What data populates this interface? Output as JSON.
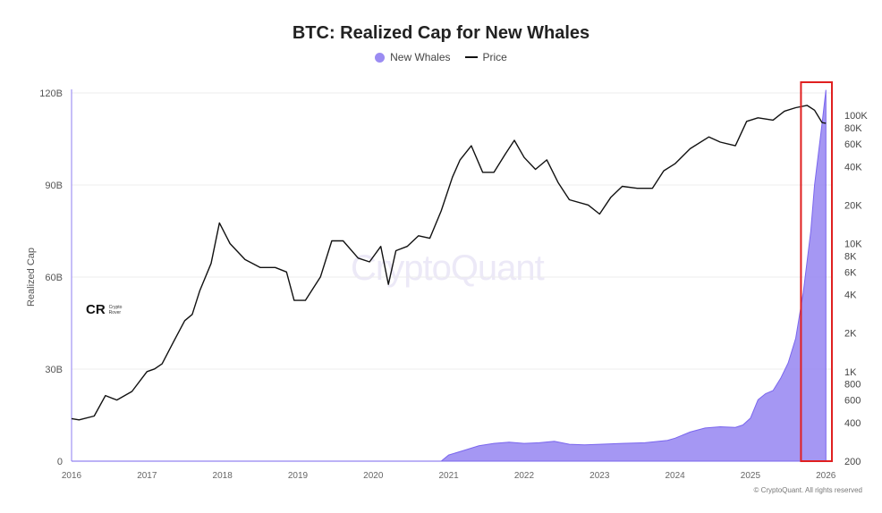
{
  "colors": {
    "area": "#9b8cf2",
    "area_stroke": "#7a66ee",
    "price": "#111111",
    "highlight": "#e02020",
    "grid": "#ececec",
    "left_axis": "#b4a8f5"
  },
  "watermark": "CryptoQuant",
  "brand": {
    "logo": "CR",
    "text": "Crypto\nRover"
  },
  "copyright": "© CryptoQuant. All rights reserved",
  "chart_data": {
    "type": "area",
    "title": "BTC: Realized Cap for New Whales",
    "legend": [
      "New Whales",
      "Price"
    ],
    "legend_position": "top-center",
    "grid": true,
    "xlabel": "",
    "ylabel": "Realized Cap",
    "y_right_scale": "log",
    "x_ticks": [
      "2016",
      "2017",
      "2018",
      "2019",
      "2020",
      "2021",
      "2022",
      "2023",
      "2024",
      "2025",
      "2026"
    ],
    "xlim": [
      2016,
      2026.08
    ],
    "y_left_ticks": [
      "0",
      "30B",
      "60B",
      "90B",
      "120B"
    ],
    "y_left_values": [
      0,
      30,
      60,
      90,
      120
    ],
    "ylim_left": [
      0,
      120
    ],
    "y_right_ticks": [
      "200",
      "400",
      "600",
      "800",
      "1K",
      "2K",
      "4K",
      "6K",
      "8K",
      "10K",
      "20K",
      "40K",
      "60K",
      "80K",
      "100K"
    ],
    "y_right_values": [
      200,
      400,
      600,
      800,
      1000,
      2000,
      4000,
      6000,
      8000,
      10000,
      20000,
      40000,
      60000,
      80000,
      100000
    ],
    "ylim_right": [
      200,
      150000
    ],
    "highlight_range": [
      2025.67,
      2026.08
    ],
    "series": [
      {
        "name": "New Whales",
        "axis": "left",
        "x": [
          2016,
          2020.9,
          2021.0,
          2021.2,
          2021.4,
          2021.6,
          2021.8,
          2022.0,
          2022.2,
          2022.4,
          2022.6,
          2022.8,
          2023.0,
          2023.3,
          2023.6,
          2023.9,
          2024.0,
          2024.2,
          2024.4,
          2024.6,
          2024.8,
          2024.9,
          2025.0,
          2025.1,
          2025.2,
          2025.3,
          2025.4,
          2025.5,
          2025.6,
          2025.7,
          2025.8,
          2025.85,
          2025.9,
          2025.95,
          2026.0
        ],
        "values": [
          0,
          0,
          2.0,
          3.5,
          5.0,
          5.8,
          6.2,
          5.8,
          6.0,
          6.5,
          5.5,
          5.3,
          5.5,
          5.8,
          6.0,
          6.8,
          7.5,
          9.5,
          10.8,
          11.2,
          11.0,
          11.8,
          14.0,
          20.0,
          22.0,
          23.0,
          27.0,
          32.0,
          40.0,
          55.0,
          75.0,
          90.0,
          100.0,
          110.0,
          121.0
        ]
      },
      {
        "name": "Price",
        "axis": "right",
        "x": [
          2016.0,
          2016.1,
          2016.3,
          2016.45,
          2016.6,
          2016.8,
          2017.0,
          2017.1,
          2017.2,
          2017.35,
          2017.5,
          2017.6,
          2017.7,
          2017.85,
          2017.96,
          2018.1,
          2018.3,
          2018.5,
          2018.7,
          2018.85,
          2018.95,
          2019.1,
          2019.3,
          2019.45,
          2019.6,
          2019.8,
          2019.95,
          2020.1,
          2020.2,
          2020.3,
          2020.45,
          2020.6,
          2020.75,
          2020.9,
          2021.05,
          2021.15,
          2021.3,
          2021.45,
          2021.6,
          2021.75,
          2021.87,
          2022.0,
          2022.15,
          2022.3,
          2022.45,
          2022.6,
          2022.85,
          2023.0,
          2023.15,
          2023.3,
          2023.5,
          2023.7,
          2023.85,
          2024.0,
          2024.2,
          2024.45,
          2024.6,
          2024.8,
          2024.95,
          2025.1,
          2025.3,
          2025.45,
          2025.6,
          2025.75,
          2025.85,
          2025.95,
          2026.0
        ],
        "values": [
          430,
          420,
          450,
          650,
          600,
          700,
          1000,
          1050,
          1150,
          1700,
          2500,
          2800,
          4300,
          7000,
          14500,
          10000,
          7500,
          6500,
          6500,
          6000,
          3600,
          3600,
          5500,
          10500,
          10500,
          7700,
          7200,
          9500,
          4800,
          8800,
          9500,
          11500,
          11000,
          18000,
          33000,
          45000,
          58000,
          36000,
          36000,
          50000,
          64000,
          47000,
          38000,
          45000,
          30000,
          22000,
          20000,
          17000,
          23000,
          28000,
          27000,
          27000,
          37000,
          42000,
          55000,
          68000,
          62000,
          58000,
          90000,
          96000,
          92000,
          108000,
          115000,
          120000,
          110000,
          88000,
          87000
        ]
      }
    ]
  }
}
